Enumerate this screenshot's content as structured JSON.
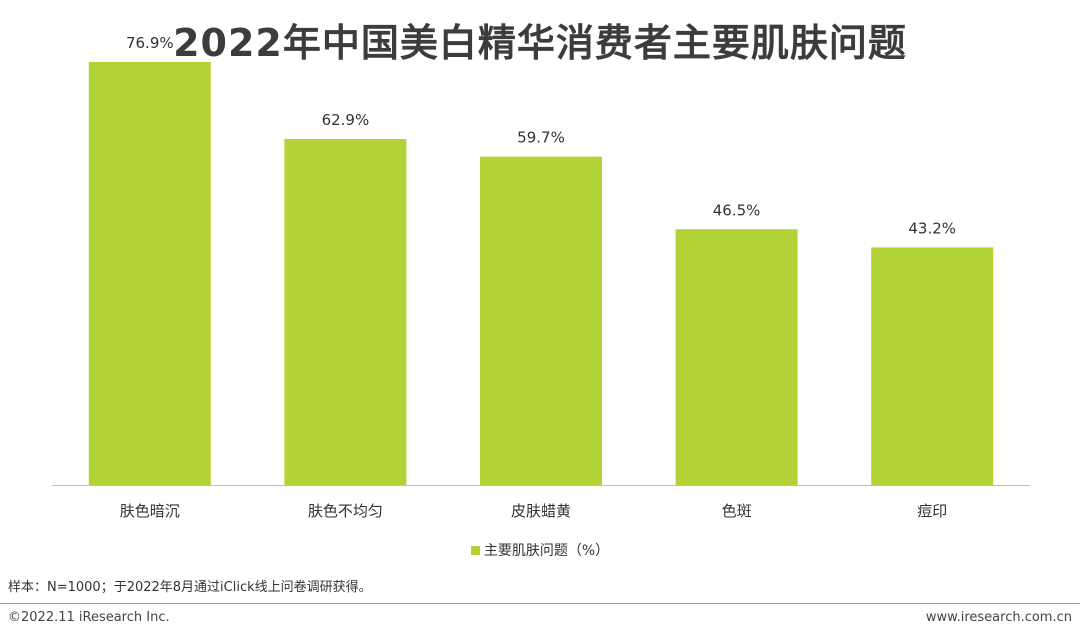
{
  "title": "2022年中国美白精华消费者主要肌肤问题",
  "chart_data": {
    "type": "bar",
    "categories": [
      "肤色暗沉",
      "肤色不均匀",
      "皮肤蜡黄",
      "色斑",
      "痘印"
    ],
    "series": [
      {
        "name": "主要肌肤问题（%）",
        "values": [
          76.9,
          62.9,
          59.7,
          46.5,
          43.2
        ],
        "labels": [
          "76.9%",
          "62.9%",
          "59.7%",
          "46.5%",
          "43.2%"
        ],
        "color": "#b2d235"
      }
    ],
    "ylim": [
      0,
      80
    ],
    "grid": false,
    "legend": "bottom"
  },
  "legend": {
    "label": "主要肌肤问题（%）",
    "color": "#b2d235"
  },
  "note": "样本：N=1000；于2022年8月通过iClick线上问卷调研获得。",
  "footer": {
    "copyright": "©2022.11 iResearch Inc.",
    "website": "www.iresearch.com.cn"
  }
}
